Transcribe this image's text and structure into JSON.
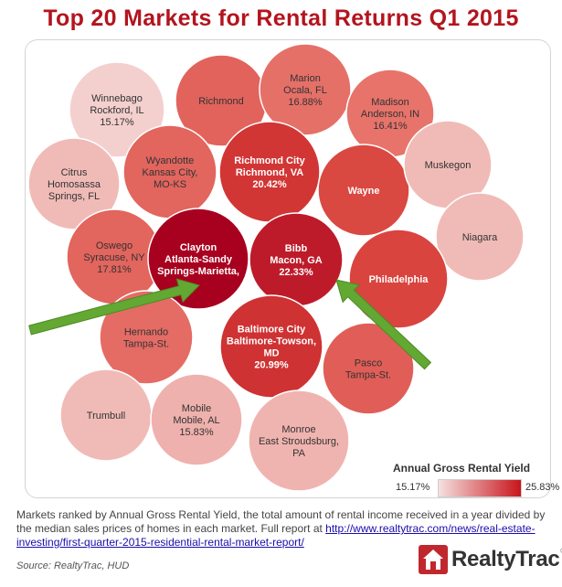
{
  "title": "Top 20 Markets for Rental Returns Q1 2015",
  "chart_data": {
    "type": "bubble",
    "title": "Top 20 Markets for Rental Returns Q1 2015",
    "color_scale": {
      "label": "Annual Gross Rental Yield",
      "min_label": "15.17%",
      "max_label": "25.83%",
      "min_value": 15.17,
      "max_value": 25.83,
      "min_color": "#f5e0df",
      "max_color": "#a8001f"
    },
    "bubbles": [
      {
        "id": "winnebago",
        "lines": [
          "Winnebago",
          "Rockford, IL",
          "15.17%"
        ],
        "yield": 15.17,
        "shade": 0.05
      },
      {
        "id": "richmond",
        "lines": [
          "Richmond"
        ],
        "yield": null,
        "shade": 0.45
      },
      {
        "id": "marion",
        "lines": [
          "Marion",
          "Ocala, FL",
          "16.88%"
        ],
        "yield": 16.88,
        "shade": 0.38
      },
      {
        "id": "madison",
        "lines": [
          "Madison",
          "Anderson, IN",
          "16.41%"
        ],
        "yield": 16.41,
        "shade": 0.36
      },
      {
        "id": "citrus",
        "lines": [
          "Citrus",
          "Homosassa",
          "Springs, FL"
        ],
        "yield": null,
        "shade": 0.12
      },
      {
        "id": "wyandotte",
        "lines": [
          "Wyandotte",
          "Kansas City,",
          "MO-KS"
        ],
        "yield": null,
        "shade": 0.44
      },
      {
        "id": "richmond-city",
        "lines": [
          "Richmond City",
          "Richmond, VA",
          "20.42%"
        ],
        "yield": 20.42,
        "shade": 0.7,
        "bold": true
      },
      {
        "id": "wayne",
        "lines": [
          "Wayne"
        ],
        "yield": null,
        "shade": 0.6,
        "bold": true
      },
      {
        "id": "muskegon",
        "lines": [
          "Muskegon"
        ],
        "yield": null,
        "shade": 0.12
      },
      {
        "id": "niagara",
        "lines": [
          "Niagara"
        ],
        "yield": null,
        "shade": 0.12
      },
      {
        "id": "oswego",
        "lines": [
          "Oswego",
          "Syracuse, NY",
          "17.81%"
        ],
        "yield": 17.81,
        "shade": 0.44
      },
      {
        "id": "clayton",
        "lines": [
          "Clayton",
          "Atlanta-Sandy",
          "Springs-Marietta,"
        ],
        "yield": null,
        "shade": 1.0,
        "bold": true
      },
      {
        "id": "bibb",
        "lines": [
          "Bibb",
          "Macon, GA",
          "22.33%"
        ],
        "yield": 22.33,
        "shade": 0.85,
        "bold": true
      },
      {
        "id": "philadelphia",
        "lines": [
          "Philadelphia"
        ],
        "yield": null,
        "shade": 0.62,
        "bold": true
      },
      {
        "id": "hernando",
        "lines": [
          "Hernando",
          "Tampa-St."
        ],
        "yield": null,
        "shade": 0.4
      },
      {
        "id": "baltimore-city",
        "lines": [
          "Baltimore City",
          "Baltimore-Towson,",
          "MD",
          "20.99%"
        ],
        "yield": 20.99,
        "shade": 0.72,
        "bold": true
      },
      {
        "id": "pasco",
        "lines": [
          "Pasco",
          "Tampa-St."
        ],
        "yield": null,
        "shade": 0.48
      },
      {
        "id": "trumbull",
        "lines": [
          "Trumbull"
        ],
        "yield": null,
        "shade": 0.12
      },
      {
        "id": "mobile",
        "lines": [
          "Mobile",
          "Mobile, AL",
          "15.83%"
        ],
        "yield": 15.83,
        "shade": 0.15
      },
      {
        "id": "monroe",
        "lines": [
          "Monroe",
          "East Stroudsburg,",
          "PA"
        ],
        "yield": null,
        "shade": 0.14
      }
    ]
  },
  "footnote": {
    "text": "Markets ranked by Annual Gross Rental Yield, the total amount of rental income received in a year divided by the median sales prices of homes in each market. Full report at ",
    "link": "http://www.realtytrac.com/news/real-estate-investing/first-quarter-2015-residential-rental-market-report/"
  },
  "source": "Source: RealtyTrac, HUD",
  "logo": {
    "name": "RealtyTrac",
    "name_part1": "Realty",
    "name_part2": "Trac",
    "tm": "®"
  },
  "colors": {
    "title": "#b3141e",
    "arrow": "#62a832",
    "logo": "#c0282e"
  }
}
